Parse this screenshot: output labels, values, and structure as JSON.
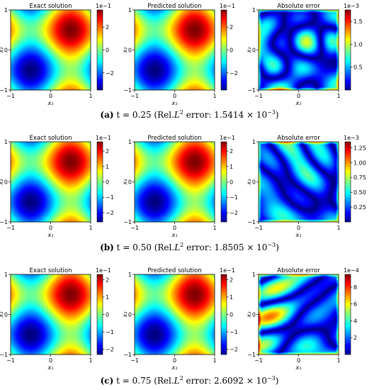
{
  "figure": {
    "captions": [
      {
        "label": "(a)",
        "t": "t = 0.25",
        "pre": "(Rel.",
        "L": "L",
        "two": "2",
        "mid": " error: 1.5414 × 10",
        "exp": "−3",
        "post": ")"
      },
      {
        "label": "(b)",
        "t": "t = 0.50",
        "pre": "(Rel.",
        "L": "L",
        "two": "2",
        "mid": " error: 1.8505 × 10",
        "exp": "−3",
        "post": ")"
      },
      {
        "label": "(c)",
        "t": "t = 0.75",
        "pre": "(Rel.",
        "L": "L",
        "two": "2",
        "mid": " error: 2.6092 × 10",
        "exp": "−3",
        "post": ")"
      }
    ]
  },
  "chart_data": [
    {
      "type": "heatmap",
      "row": 0,
      "col": 0,
      "title": "Exact solution",
      "xlabel": "x₁",
      "ylabel": "x₂",
      "xlim": [
        -1,
        1
      ],
      "ylim": [
        -1,
        1
      ],
      "xticks": [
        "−1",
        "0",
        "1"
      ],
      "yticks": [
        "−1",
        "0",
        "1"
      ],
      "field": "solution",
      "amplitude": 3.5,
      "vmin": -3.5,
      "vmax": 3.5,
      "cbar_ticks": [
        {
          "v": 2,
          "label": "2"
        },
        {
          "v": 0,
          "label": "0"
        },
        {
          "v": -2,
          "label": "−2"
        }
      ],
      "cbar_exponent": "1e−1",
      "colormap": "jet"
    },
    {
      "type": "heatmap",
      "row": 0,
      "col": 1,
      "title": "Predicted solution",
      "xlabel": "x₁",
      "ylabel": "x₂",
      "xlim": [
        -1,
        1
      ],
      "ylim": [
        -1,
        1
      ],
      "xticks": [
        "−1",
        "0",
        "1"
      ],
      "yticks": [
        "−1",
        "0",
        "1"
      ],
      "field": "solution",
      "amplitude": 3.5,
      "vmin": -3.5,
      "vmax": 3.5,
      "cbar_ticks": [
        {
          "v": 2,
          "label": "2"
        },
        {
          "v": 0,
          "label": "0"
        },
        {
          "v": -2,
          "label": "−2"
        }
      ],
      "cbar_exponent": "1e−1",
      "colormap": "jet"
    },
    {
      "type": "heatmap",
      "row": 0,
      "col": 2,
      "title": "Absolute error",
      "xlabel": "x₁",
      "ylabel": "x₂",
      "xlim": [
        -1,
        1
      ],
      "ylim": [
        -1,
        1
      ],
      "xticks": [
        "−1",
        "0",
        "1"
      ],
      "yticks": [
        "−1",
        "0",
        "1"
      ],
      "field": "error",
      "seed": 1,
      "vmin": 0,
      "vmax": 1.75,
      "cbar_ticks": [
        {
          "v": 1.5,
          "label": "1.5"
        },
        {
          "v": 1.0,
          "label": "1.0"
        },
        {
          "v": 0.5,
          "label": "0.5"
        }
      ],
      "cbar_exponent": "1e−3",
      "colormap": "jet"
    },
    {
      "type": "heatmap",
      "row": 1,
      "col": 0,
      "title": "Exact solution",
      "xlabel": "x₁",
      "ylabel": "x₂",
      "xlim": [
        -1,
        1
      ],
      "ylim": [
        -1,
        1
      ],
      "xticks": [
        "−1",
        "0",
        "1"
      ],
      "yticks": [
        "−1",
        "0",
        "1"
      ],
      "field": "solution",
      "amplitude": 2.6,
      "vmin": -2.6,
      "vmax": 2.6,
      "cbar_ticks": [
        {
          "v": 2,
          "label": "2"
        },
        {
          "v": 1,
          "label": "1"
        },
        {
          "v": 0,
          "label": "0"
        },
        {
          "v": -1,
          "label": "−1"
        },
        {
          "v": -2,
          "label": "−2"
        }
      ],
      "cbar_exponent": "1e−1",
      "colormap": "jet"
    },
    {
      "type": "heatmap",
      "row": 1,
      "col": 1,
      "title": "Predicted solution",
      "xlabel": "x₁",
      "ylabel": "x₂",
      "xlim": [
        -1,
        1
      ],
      "ylim": [
        -1,
        1
      ],
      "xticks": [
        "−1",
        "0",
        "1"
      ],
      "yticks": [
        "−1",
        "0",
        "1"
      ],
      "field": "solution",
      "amplitude": 2.6,
      "vmin": -2.6,
      "vmax": 2.6,
      "cbar_ticks": [
        {
          "v": 2,
          "label": "2"
        },
        {
          "v": 1,
          "label": "1"
        },
        {
          "v": 0,
          "label": "0"
        },
        {
          "v": -1,
          "label": "−1"
        },
        {
          "v": -2,
          "label": "−2"
        }
      ],
      "cbar_exponent": "1e−1",
      "colormap": "jet"
    },
    {
      "type": "heatmap",
      "row": 1,
      "col": 2,
      "title": "Absolute error",
      "xlabel": "x₁",
      "ylabel": "x₂",
      "xlim": [
        -1,
        1
      ],
      "ylim": [
        -1,
        1
      ],
      "xticks": [
        "−1",
        "0",
        "1"
      ],
      "yticks": [
        "−1",
        "0",
        "1"
      ],
      "field": "error",
      "seed": 2,
      "vmin": 0,
      "vmax": 1.35,
      "cbar_ticks": [
        {
          "v": 1.25,
          "label": "1.25"
        },
        {
          "v": 1.0,
          "label": "1.00"
        },
        {
          "v": 0.75,
          "label": "0.75"
        },
        {
          "v": 0.5,
          "label": "0.50"
        },
        {
          "v": 0.25,
          "label": "0.25"
        }
      ],
      "cbar_exponent": "1e−3",
      "colormap": "jet"
    },
    {
      "type": "heatmap",
      "row": 2,
      "col": 0,
      "title": "Exact solution",
      "xlabel": "x₁",
      "ylabel": "x₂",
      "xlim": [
        -1,
        1
      ],
      "ylim": [
        -1,
        1
      ],
      "xticks": [
        "−1",
        "0",
        "1"
      ],
      "yticks": [
        "−1",
        "0",
        "1"
      ],
      "field": "solution",
      "amplitude": 2.3,
      "vmin": -2.3,
      "vmax": 2.3,
      "cbar_ticks": [
        {
          "v": 2,
          "label": "2"
        },
        {
          "v": 1,
          "label": "1"
        },
        {
          "v": 0,
          "label": "0"
        },
        {
          "v": -1,
          "label": "−1"
        },
        {
          "v": -2,
          "label": "−2"
        }
      ],
      "cbar_exponent": "1e−1",
      "colormap": "jet"
    },
    {
      "type": "heatmap",
      "row": 2,
      "col": 1,
      "title": "Predicted solution",
      "xlabel": "x₁",
      "ylabel": "x₂",
      "xlim": [
        -1,
        1
      ],
      "ylim": [
        -1,
        1
      ],
      "xticks": [
        "−1",
        "0",
        "1"
      ],
      "yticks": [
        "−1",
        "0",
        "1"
      ],
      "field": "solution",
      "amplitude": 2.3,
      "vmin": -2.3,
      "vmax": 2.3,
      "cbar_ticks": [
        {
          "v": 2,
          "label": "2"
        },
        {
          "v": 1,
          "label": "1"
        },
        {
          "v": 0,
          "label": "0"
        },
        {
          "v": -1,
          "label": "−1"
        },
        {
          "v": -2,
          "label": "−2"
        }
      ],
      "cbar_exponent": "1e−1",
      "colormap": "jet"
    },
    {
      "type": "heatmap",
      "row": 2,
      "col": 2,
      "title": "Absolute error",
      "xlabel": "x₁",
      "ylabel": "x₂",
      "xlim": [
        -1,
        1
      ],
      "ylim": [
        -1,
        1
      ],
      "xticks": [
        "−1",
        "0",
        "1"
      ],
      "yticks": [
        "−1",
        "0",
        "1"
      ],
      "field": "error",
      "seed": 3,
      "vmin": 0,
      "vmax": 9.5,
      "cbar_ticks": [
        {
          "v": 8,
          "label": "8"
        },
        {
          "v": 6,
          "label": "6"
        },
        {
          "v": 4,
          "label": "4"
        },
        {
          "v": 2,
          "label": "2"
        }
      ],
      "cbar_exponent": "1e−4",
      "colormap": "jet"
    }
  ]
}
